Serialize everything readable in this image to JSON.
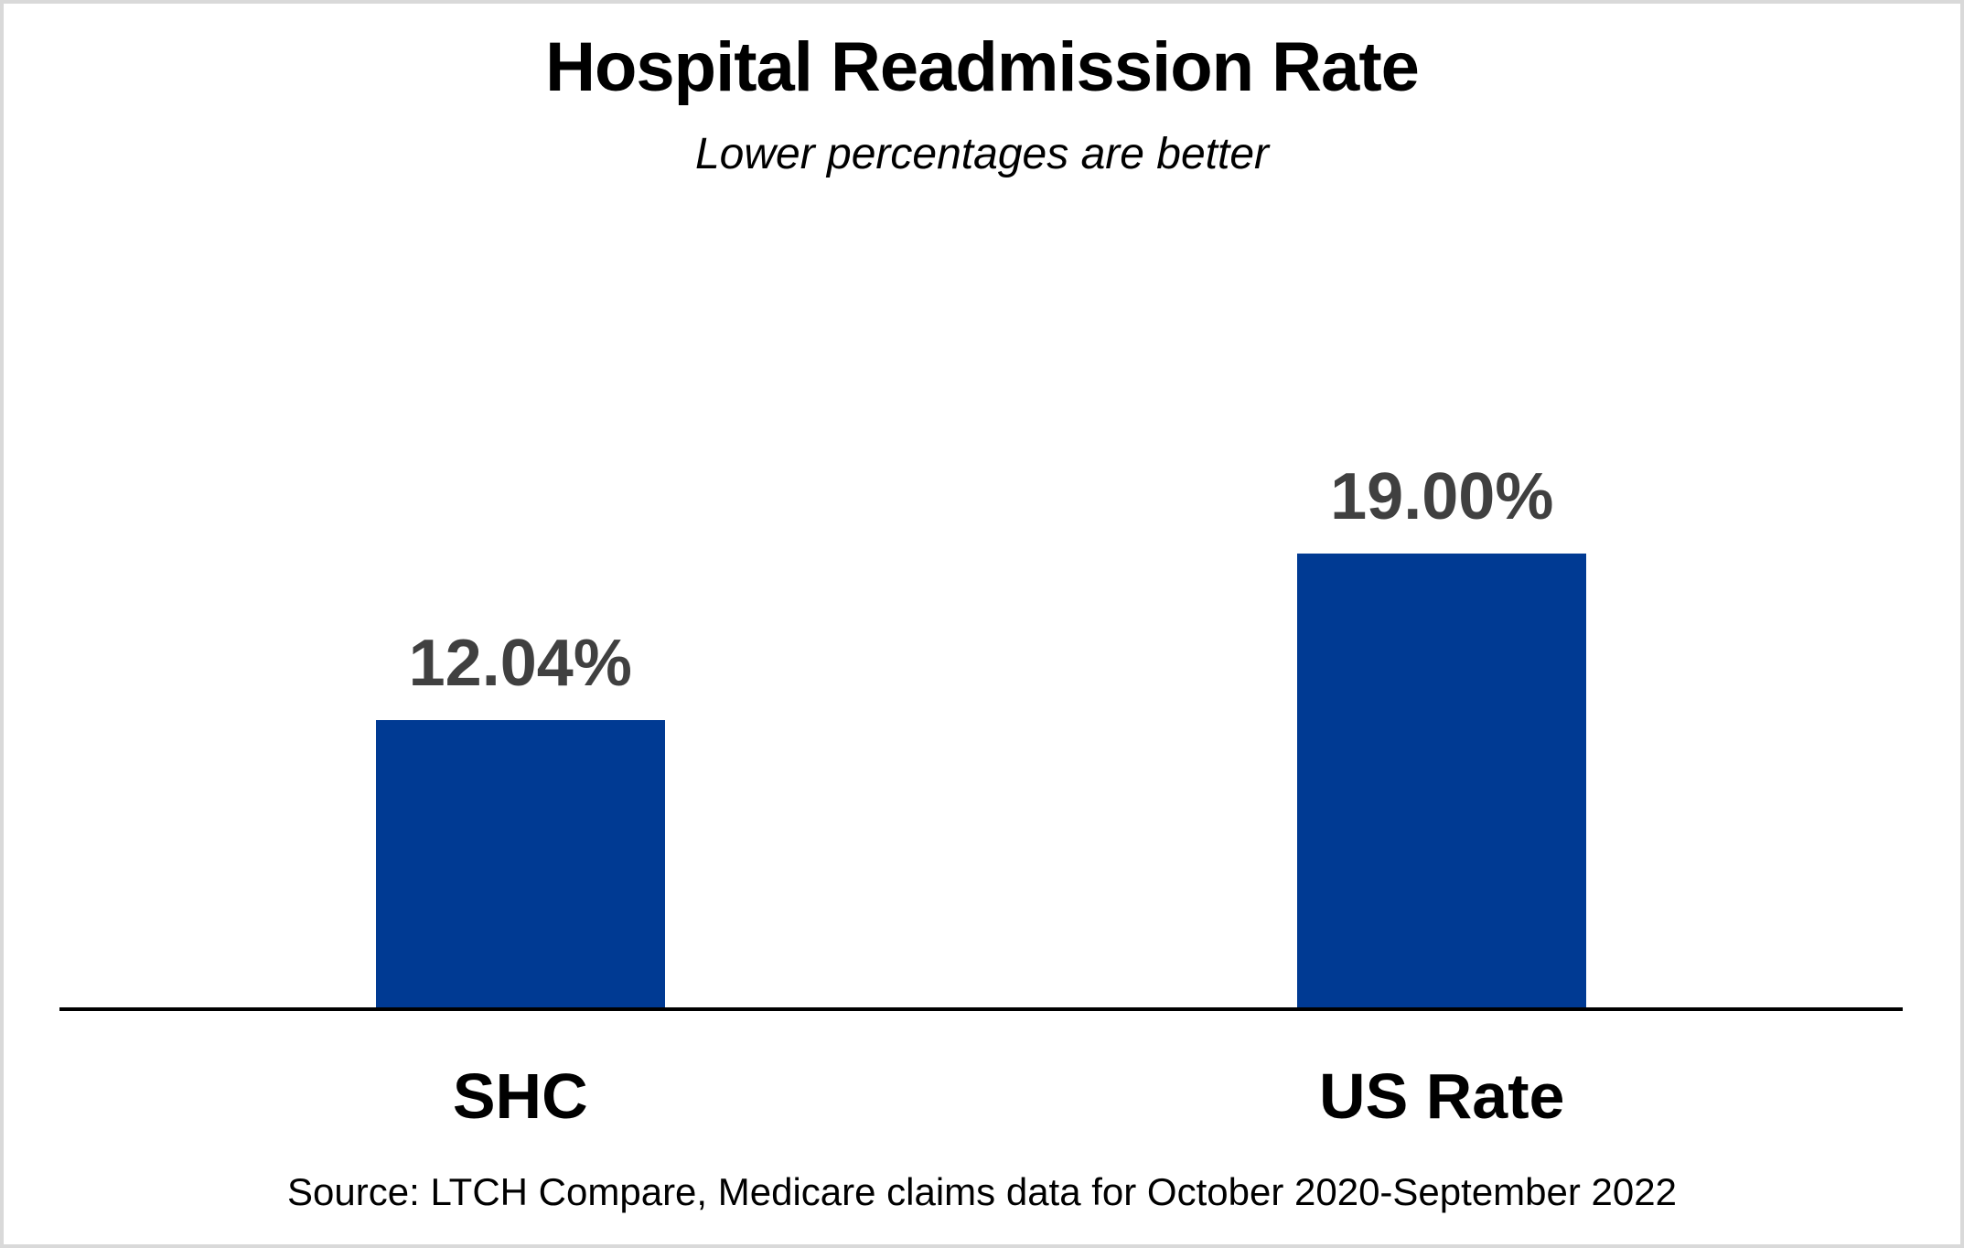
{
  "title": "Hospital Readmission Rate",
  "subtitle": "Lower percentages are better",
  "source": "Source: LTCH Compare, Medicare claims data for October 2020-September 2022",
  "colors": {
    "bar": "#003A93",
    "value_label": "#404040",
    "category_label": "#000000",
    "axis": "#000000",
    "frame_border": "#D9D9D9",
    "background": "#FFFFFF"
  },
  "chart_data": {
    "type": "bar",
    "title": "Hospital Readmission Rate",
    "subtitle": "Lower percentages are better",
    "categories": [
      "SHC",
      "US Rate"
    ],
    "values": [
      12.04,
      19.0
    ],
    "value_labels": [
      "12.04%",
      "19.00%"
    ],
    "xlabel": "",
    "ylabel": "",
    "ylim": [
      0,
      22
    ],
    "grid": false,
    "legend": false,
    "bar_color": "#003A93",
    "annotations": [
      "Source: LTCH Compare, Medicare claims data for October 2020-September 2022"
    ]
  }
}
